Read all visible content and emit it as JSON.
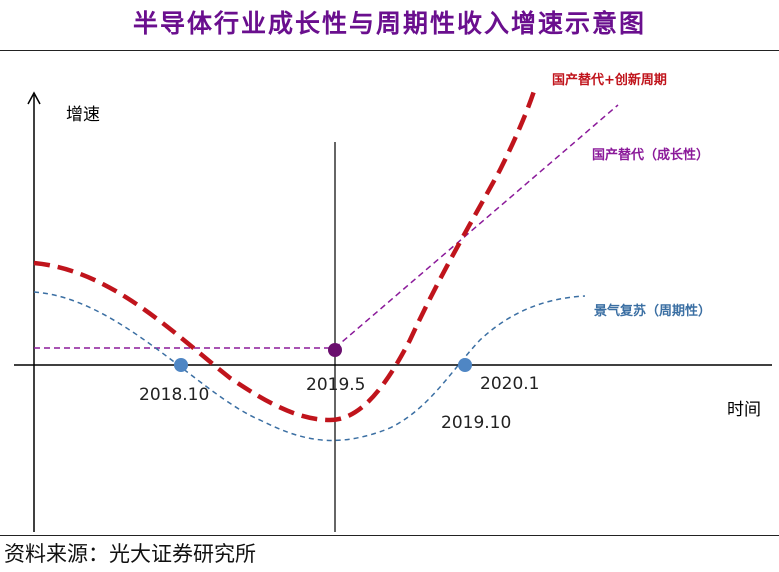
{
  "title": "半导体行业成长性与周期性收入增速示意图",
  "source": "资料来源：光大证券研究所",
  "axes": {
    "y_label": "增速",
    "x_label": "时间"
  },
  "points": {
    "p2018_10": "2018.10",
    "p2019_5": "2019.5",
    "p2019_10": "2019.10",
    "p2020_1": "2020.1"
  },
  "legend": {
    "combined": "国产替代+创新周期",
    "growth": "国产替代（成长性）",
    "cycle": "景气复苏（周期性）"
  },
  "colors": {
    "title": "#6a0f8e",
    "combined": "#c0141c",
    "growth": "#8b1a9a",
    "cycle": "#3b6fa3",
    "cycle_marker": "#4f86c4",
    "growth_marker": "#6a0f6e",
    "axis": "#000000"
  }
}
